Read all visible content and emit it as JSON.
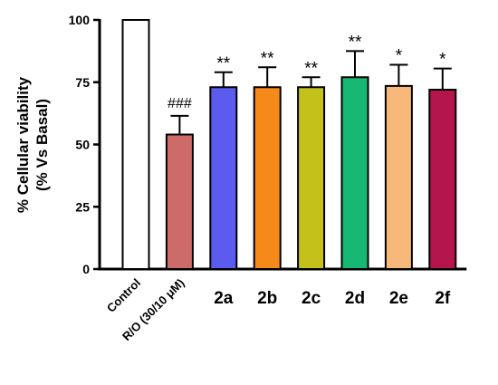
{
  "chart_data": {
    "type": "bar",
    "ylabel_lines": [
      "% Cellular viability",
      "(% Vs Basal)"
    ],
    "ylim": [
      0,
      100
    ],
    "yticks": [
      "0",
      "25",
      "50",
      "75",
      "100"
    ],
    "categories": [
      "Control",
      "R/O (30/10 μM)",
      "2a",
      "2b",
      "2c",
      "2d",
      "2e",
      "2f"
    ],
    "values": [
      100,
      54,
      73,
      73,
      73,
      77,
      73.5,
      72
    ],
    "errors": [
      0,
      7.5,
      6,
      8,
      4,
      10.5,
      8.5,
      8.5
    ],
    "annotations": [
      "",
      "###",
      "**",
      "**",
      "**",
      "**",
      "*",
      "*"
    ],
    "colors": [
      "#ffffff",
      "#cd6b69",
      "#5b5bf0",
      "#f5891a",
      "#c4c21a",
      "#17b874",
      "#f8b87a",
      "#b4154d"
    ],
    "grid": false,
    "legend": "none"
  }
}
